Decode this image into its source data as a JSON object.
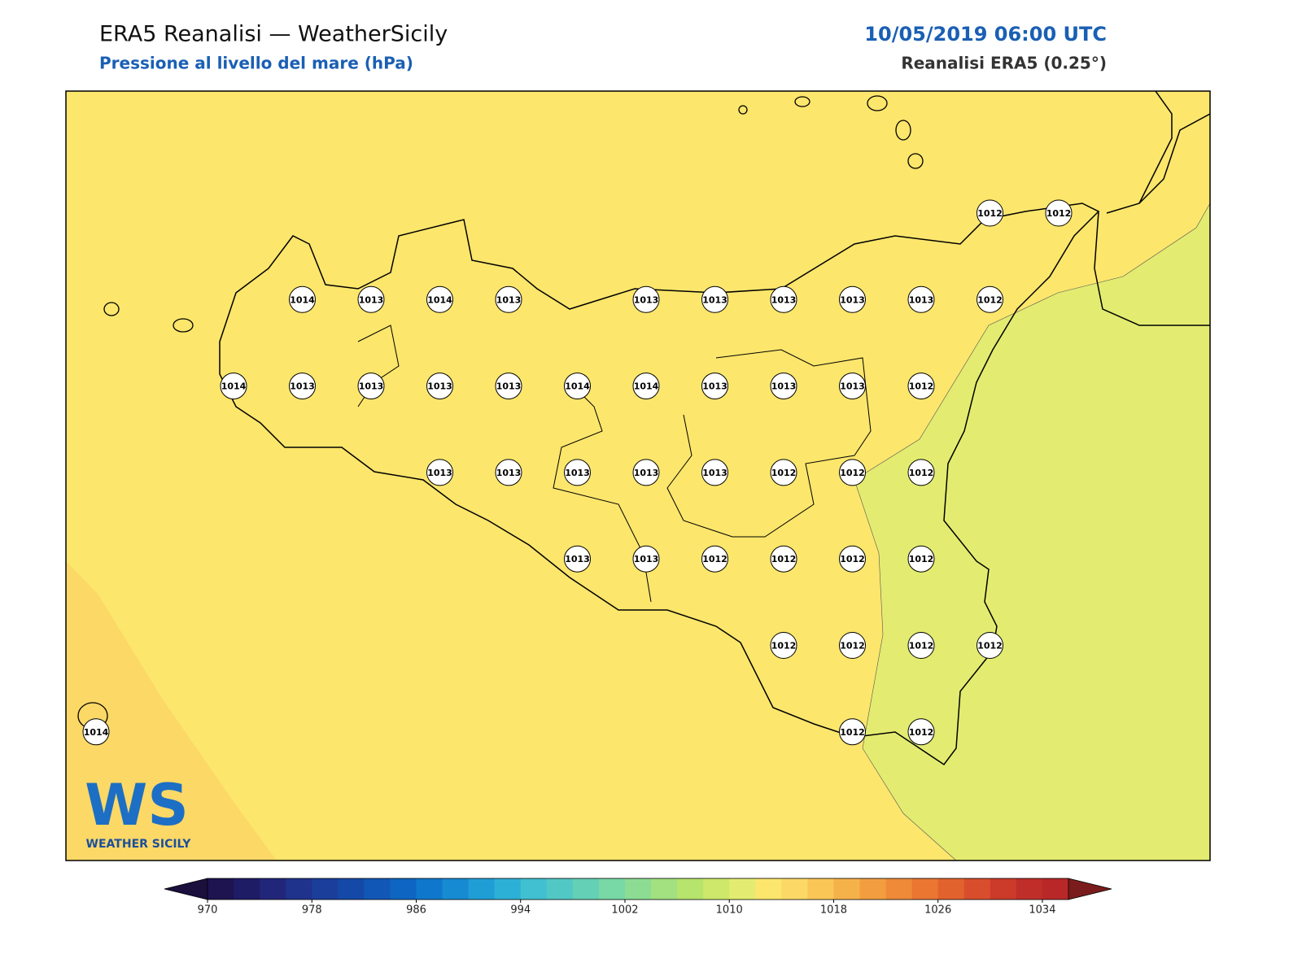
{
  "header": {
    "title": "ERA5 Reanalisi — WeatherSicily",
    "subtitle": "Pressione al livello del mare (hPa)",
    "date": "10/05/2019 06:00 UTC",
    "source": "Reanalisi ERA5 (0.25°)"
  },
  "stations": {
    "rows": [
      [
        null,
        null,
        null,
        null,
        null,
        null,
        null,
        null,
        null,
        null,
        null,
        null,
        null,
        1012,
        1012
      ],
      [
        null,
        null,
        null,
        1014,
        1013,
        1014,
        1013,
        null,
        1013,
        1013,
        1013,
        1013,
        1013,
        1012,
        null
      ],
      [
        null,
        null,
        1014,
        1013,
        1013,
        1013,
        1013,
        1014,
        1014,
        1013,
        1013,
        1013,
        1012,
        null,
        null
      ],
      [
        null,
        null,
        null,
        null,
        null,
        1013,
        1013,
        1013,
        1013,
        1013,
        1012,
        1012,
        1012,
        null,
        null
      ],
      [
        null,
        null,
        null,
        null,
        null,
        null,
        null,
        1013,
        1013,
        1012,
        1012,
        1012,
        1012,
        null,
        null
      ],
      [
        null,
        null,
        null,
        null,
        null,
        null,
        null,
        null,
        null,
        null,
        1012,
        1012,
        1012,
        1012,
        null
      ],
      [
        1014,
        null,
        null,
        null,
        null,
        null,
        null,
        null,
        null,
        null,
        null,
        1012,
        1012,
        null,
        null
      ]
    ]
  },
  "colorbar": {
    "lim": [
      970,
      1036
    ],
    "ticks": [
      970,
      978,
      986,
      994,
      1002,
      1010,
      1018,
      1026,
      1034
    ],
    "colors": [
      "#1d1450",
      "#1f1c66",
      "#22267a",
      "#1f338c",
      "#1a3e9a",
      "#1549a8",
      "#1157b6",
      "#0e66c2",
      "#0f78cc",
      "#168bd2",
      "#1f9ed6",
      "#2db0d6",
      "#40c0d0",
      "#52c8c4",
      "#64d0b6",
      "#78d8a6",
      "#8cdc94",
      "#a2e080",
      "#b6e46c",
      "#cde86a",
      "#e3ec70",
      "#fce66c",
      "#fcd866",
      "#fac656",
      "#f6b24a",
      "#f29e40",
      "#ee8a38",
      "#ea7632",
      "#e2622e",
      "#d84e2c",
      "#cc3a2a",
      "#c02e2a",
      "#b82828"
    ],
    "under": "#1a0f3d",
    "over": "#7a1c1c"
  },
  "logo": {
    "mark": "WS",
    "name": "WEATHER SICILY"
  }
}
